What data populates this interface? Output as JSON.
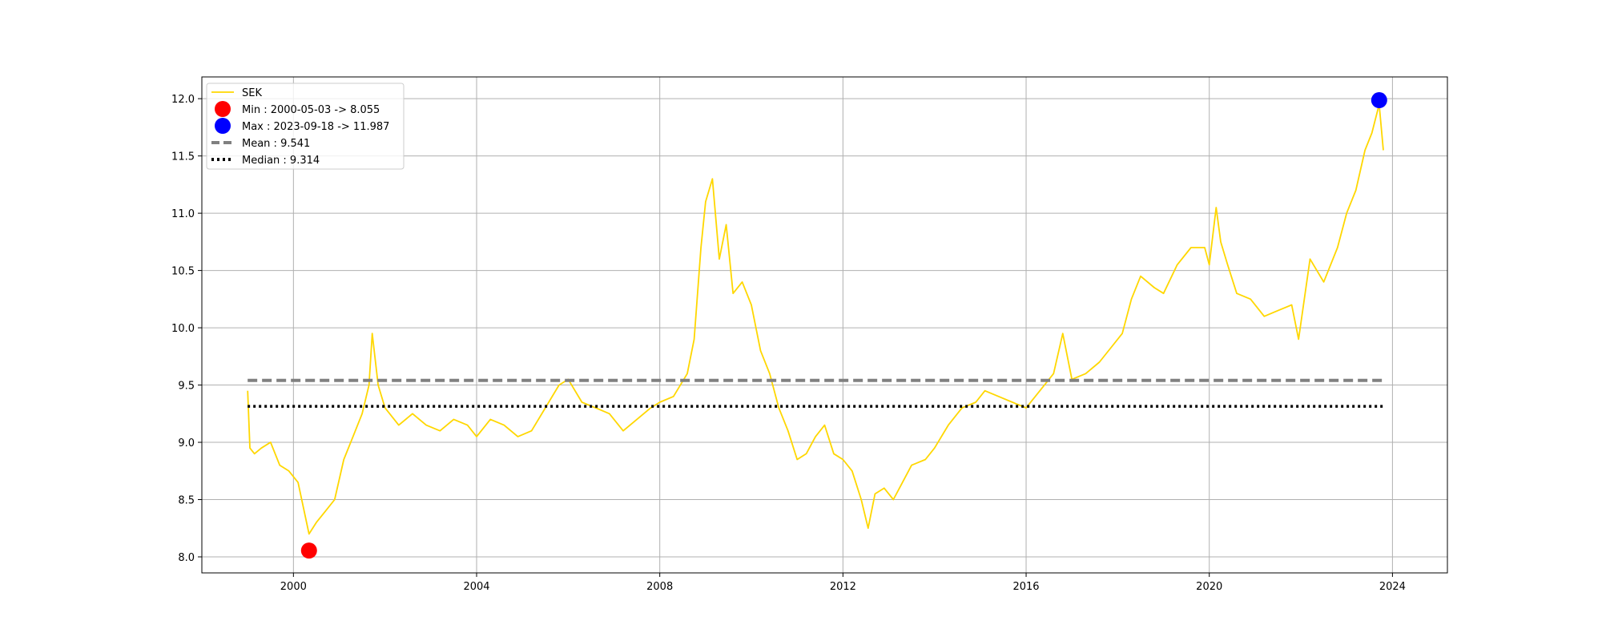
{
  "chart_data": {
    "type": "line",
    "title": "",
    "xlabel": "",
    "ylabel": "",
    "xlim": [
      1998.0,
      2025.2
    ],
    "ylim": [
      7.86,
      12.19
    ],
    "xticks": [
      2000,
      2004,
      2008,
      2012,
      2016,
      2020,
      2024
    ],
    "xtick_labels": [
      "2000",
      "2004",
      "2008",
      "2012",
      "2016",
      "2020",
      "2024"
    ],
    "yticks": [
      8.0,
      8.5,
      9.0,
      9.5,
      10.0,
      10.5,
      11.0,
      11.5,
      12.0
    ],
    "ytick_labels": [
      "8.0",
      "8.5",
      "9.0",
      "9.5",
      "10.0",
      "10.5",
      "11.0",
      "11.5",
      "12.0"
    ],
    "grid": true,
    "legend_position": "top-left",
    "colors": {
      "series": "#ffd700",
      "min_marker": "#ff0000",
      "max_marker": "#0000ff",
      "mean_line": "#808080",
      "median_line": "#000000"
    },
    "series": [
      {
        "name": "SEK",
        "x": [
          1999.0,
          1999.05,
          1999.15,
          1999.3,
          1999.5,
          1999.7,
          1999.9,
          2000.1,
          2000.34,
          2000.5,
          2000.7,
          2000.9,
          2001.1,
          2001.3,
          2001.5,
          2001.65,
          2001.72,
          2001.85,
          2002.0,
          2002.3,
          2002.6,
          2002.9,
          2003.2,
          2003.5,
          2003.8,
          2004.0,
          2004.3,
          2004.6,
          2004.9,
          2005.2,
          2005.5,
          2005.8,
          2006.0,
          2006.3,
          2006.6,
          2006.9,
          2007.2,
          2007.5,
          2007.8,
          2008.0,
          2008.3,
          2008.6,
          2008.75,
          2008.9,
          2009.0,
          2009.15,
          2009.3,
          2009.45,
          2009.6,
          2009.8,
          2010.0,
          2010.2,
          2010.4,
          2010.6,
          2010.8,
          2011.0,
          2011.2,
          2011.4,
          2011.6,
          2011.8,
          2012.0,
          2012.2,
          2012.4,
          2012.55,
          2012.7,
          2012.9,
          2013.1,
          2013.3,
          2013.5,
          2013.8,
          2014.0,
          2014.3,
          2014.6,
          2014.9,
          2015.1,
          2015.4,
          2015.7,
          2016.0,
          2016.3,
          2016.6,
          2016.8,
          2017.0,
          2017.3,
          2017.6,
          2017.9,
          2018.1,
          2018.3,
          2018.5,
          2018.8,
          2019.0,
          2019.3,
          2019.6,
          2019.9,
          2020.0,
          2020.15,
          2020.25,
          2020.4,
          2020.6,
          2020.9,
          2021.2,
          2021.5,
          2021.8,
          2021.95,
          2022.2,
          2022.5,
          2022.8,
          2023.0,
          2023.2,
          2023.4,
          2023.55,
          2023.71,
          2023.8
        ],
        "y": [
          9.45,
          8.95,
          8.9,
          8.95,
          9.0,
          8.8,
          8.75,
          8.65,
          8.2,
          8.3,
          8.4,
          8.5,
          8.85,
          9.05,
          9.25,
          9.5,
          9.95,
          9.5,
          9.3,
          9.15,
          9.25,
          9.15,
          9.1,
          9.2,
          9.15,
          9.05,
          9.2,
          9.15,
          9.05,
          9.1,
          9.3,
          9.5,
          9.55,
          9.35,
          9.3,
          9.25,
          9.1,
          9.2,
          9.3,
          9.35,
          9.4,
          9.6,
          9.9,
          10.7,
          11.1,
          11.3,
          10.6,
          10.9,
          10.3,
          10.4,
          10.2,
          9.8,
          9.6,
          9.3,
          9.1,
          8.85,
          8.9,
          9.05,
          9.15,
          8.9,
          8.85,
          8.75,
          8.5,
          8.25,
          8.55,
          8.6,
          8.5,
          8.65,
          8.8,
          8.85,
          8.95,
          9.15,
          9.3,
          9.35,
          9.45,
          9.4,
          9.35,
          9.3,
          9.45,
          9.6,
          9.95,
          9.55,
          9.6,
          9.7,
          9.85,
          9.95,
          10.25,
          10.45,
          10.35,
          10.3,
          10.55,
          10.7,
          10.7,
          10.55,
          11.05,
          10.75,
          10.55,
          10.3,
          10.25,
          10.1,
          10.15,
          10.2,
          9.9,
          10.6,
          10.4,
          10.7,
          11.0,
          11.2,
          11.55,
          11.7,
          11.95,
          11.55
        ]
      }
    ],
    "annotations": [
      {
        "kind": "scatter",
        "name": "Min : 2000-05-03 -> 8.055",
        "x": 2000.34,
        "y": 8.055
      },
      {
        "kind": "scatter",
        "name": "Max : 2023-09-18 -> 11.987",
        "x": 2023.71,
        "y": 11.987
      },
      {
        "kind": "hline",
        "name": "Mean : 9.541",
        "y": 9.541,
        "x_start": 1999.0,
        "x_end": 2023.8,
        "style": "dashed"
      },
      {
        "kind": "hline",
        "name": "Median : 9.314",
        "y": 9.314,
        "x_start": 1999.0,
        "x_end": 2023.8,
        "style": "dotted"
      }
    ],
    "legend": [
      "SEK",
      "Min : 2000-05-03 -> 8.055",
      "Max : 2023-09-18 -> 11.987",
      "Mean : 9.541",
      "Median : 9.314"
    ]
  }
}
